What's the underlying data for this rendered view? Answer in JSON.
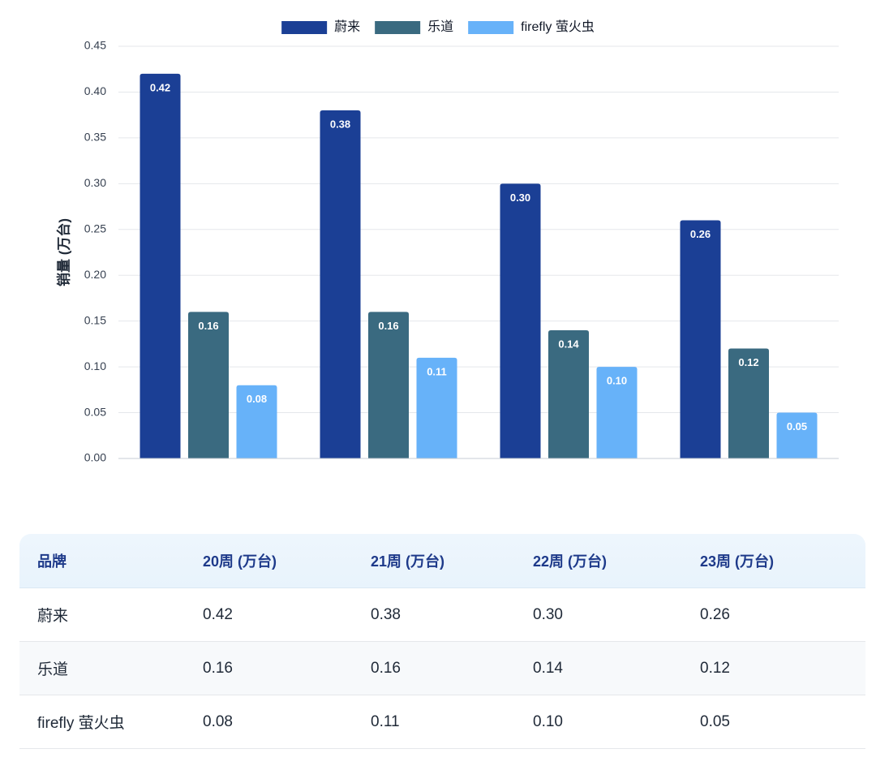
{
  "chart_data": {
    "type": "bar",
    "categories": [
      "20周",
      "21周",
      "22周",
      "23周"
    ],
    "series": [
      {
        "name": "蔚来",
        "color": "#1b3f95",
        "values": [
          0.42,
          0.38,
          0.3,
          0.26
        ]
      },
      {
        "name": "乐道",
        "color": "#3a6a80",
        "values": [
          0.16,
          0.16,
          0.14,
          0.12
        ]
      },
      {
        "name": "firefly 萤火虫",
        "color": "#67b2f9",
        "values": [
          0.08,
          0.11,
          0.1,
          0.05
        ]
      }
    ],
    "title": "",
    "xlabel": "",
    "ylabel": "销量 (万台)",
    "ylim": [
      0,
      0.45
    ],
    "yticks": [
      "0.00",
      "0.05",
      "0.10",
      "0.15",
      "0.20",
      "0.25",
      "0.30",
      "0.35",
      "0.40",
      "0.45"
    ],
    "show_xtick_labels": false,
    "grid": true,
    "legend_position": "top-center",
    "data_labels": true
  },
  "table": {
    "headers": [
      "品牌",
      "20周 (万台)",
      "21周 (万台)",
      "22周 (万台)",
      "23周 (万台)"
    ],
    "rows": [
      [
        "蔚来",
        "0.42",
        "0.38",
        "0.30",
        "0.26"
      ],
      [
        "乐道",
        "0.16",
        "0.16",
        "0.14",
        "0.12"
      ],
      [
        "firefly 萤火虫",
        "0.08",
        "0.11",
        "0.10",
        "0.05"
      ]
    ]
  }
}
